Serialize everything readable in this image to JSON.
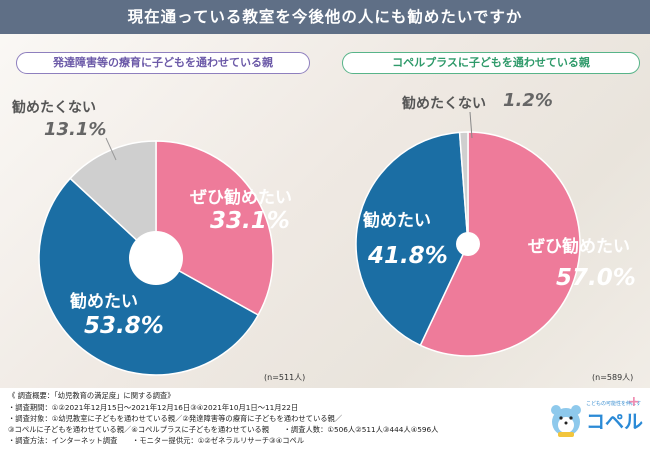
{
  "title": "現在通っている教室を今後他の人にも勧めたいですか",
  "colors": {
    "strong": "#ee7b9a",
    "recommend": "#1b6ea4",
    "not": "#cfcfcf"
  },
  "chart_data": [
    {
      "type": "pie",
      "title": "発達障害等の療育に子どもを通わせている親",
      "n": "(n=511人)",
      "slices": [
        {
          "label": "ぜひ勧めたい",
          "value": 33.1,
          "display": "33.1%"
        },
        {
          "label": "勧めたい",
          "value": 53.8,
          "display": "53.8%"
        },
        {
          "label": "勧めたくない",
          "value": 13.1,
          "display": "13.1%"
        }
      ]
    },
    {
      "type": "pie",
      "title": "コペルプラスに子どもを通わせている親",
      "n": "(n=589人)",
      "slices": [
        {
          "label": "ぜひ勧めたい",
          "value": 57.0,
          "display": "57.0%"
        },
        {
          "label": "勧めたい",
          "value": 41.8,
          "display": "41.8%"
        },
        {
          "label": "勧めたくない",
          "value": 1.2,
          "display": "1.2%"
        }
      ]
    }
  ],
  "notes": [
    "《 調査概要：「幼児教育の満足度」に関する調査》",
    "・調査期間：①②2021年12月15日〜2021年12月16日③④2021年10月1日〜11月22日",
    "・調査対象：①幼児教室に子どもを通わせている親／②発達障害等の療育に子どもを通わせている親／",
    "③コペルに子どもを通わせている親／④コペルプラスに子どもを通わせている親　　・調査人数：①506人②511人③444人④596人",
    "・調査方法：インターネット調査　　・モニター提供元：①②ゼネラルリサーチ③④コペル"
  ],
  "logo": {
    "tagline": "こどもの可能性を伸ばす",
    "name": "コペル",
    "plus": "+"
  }
}
